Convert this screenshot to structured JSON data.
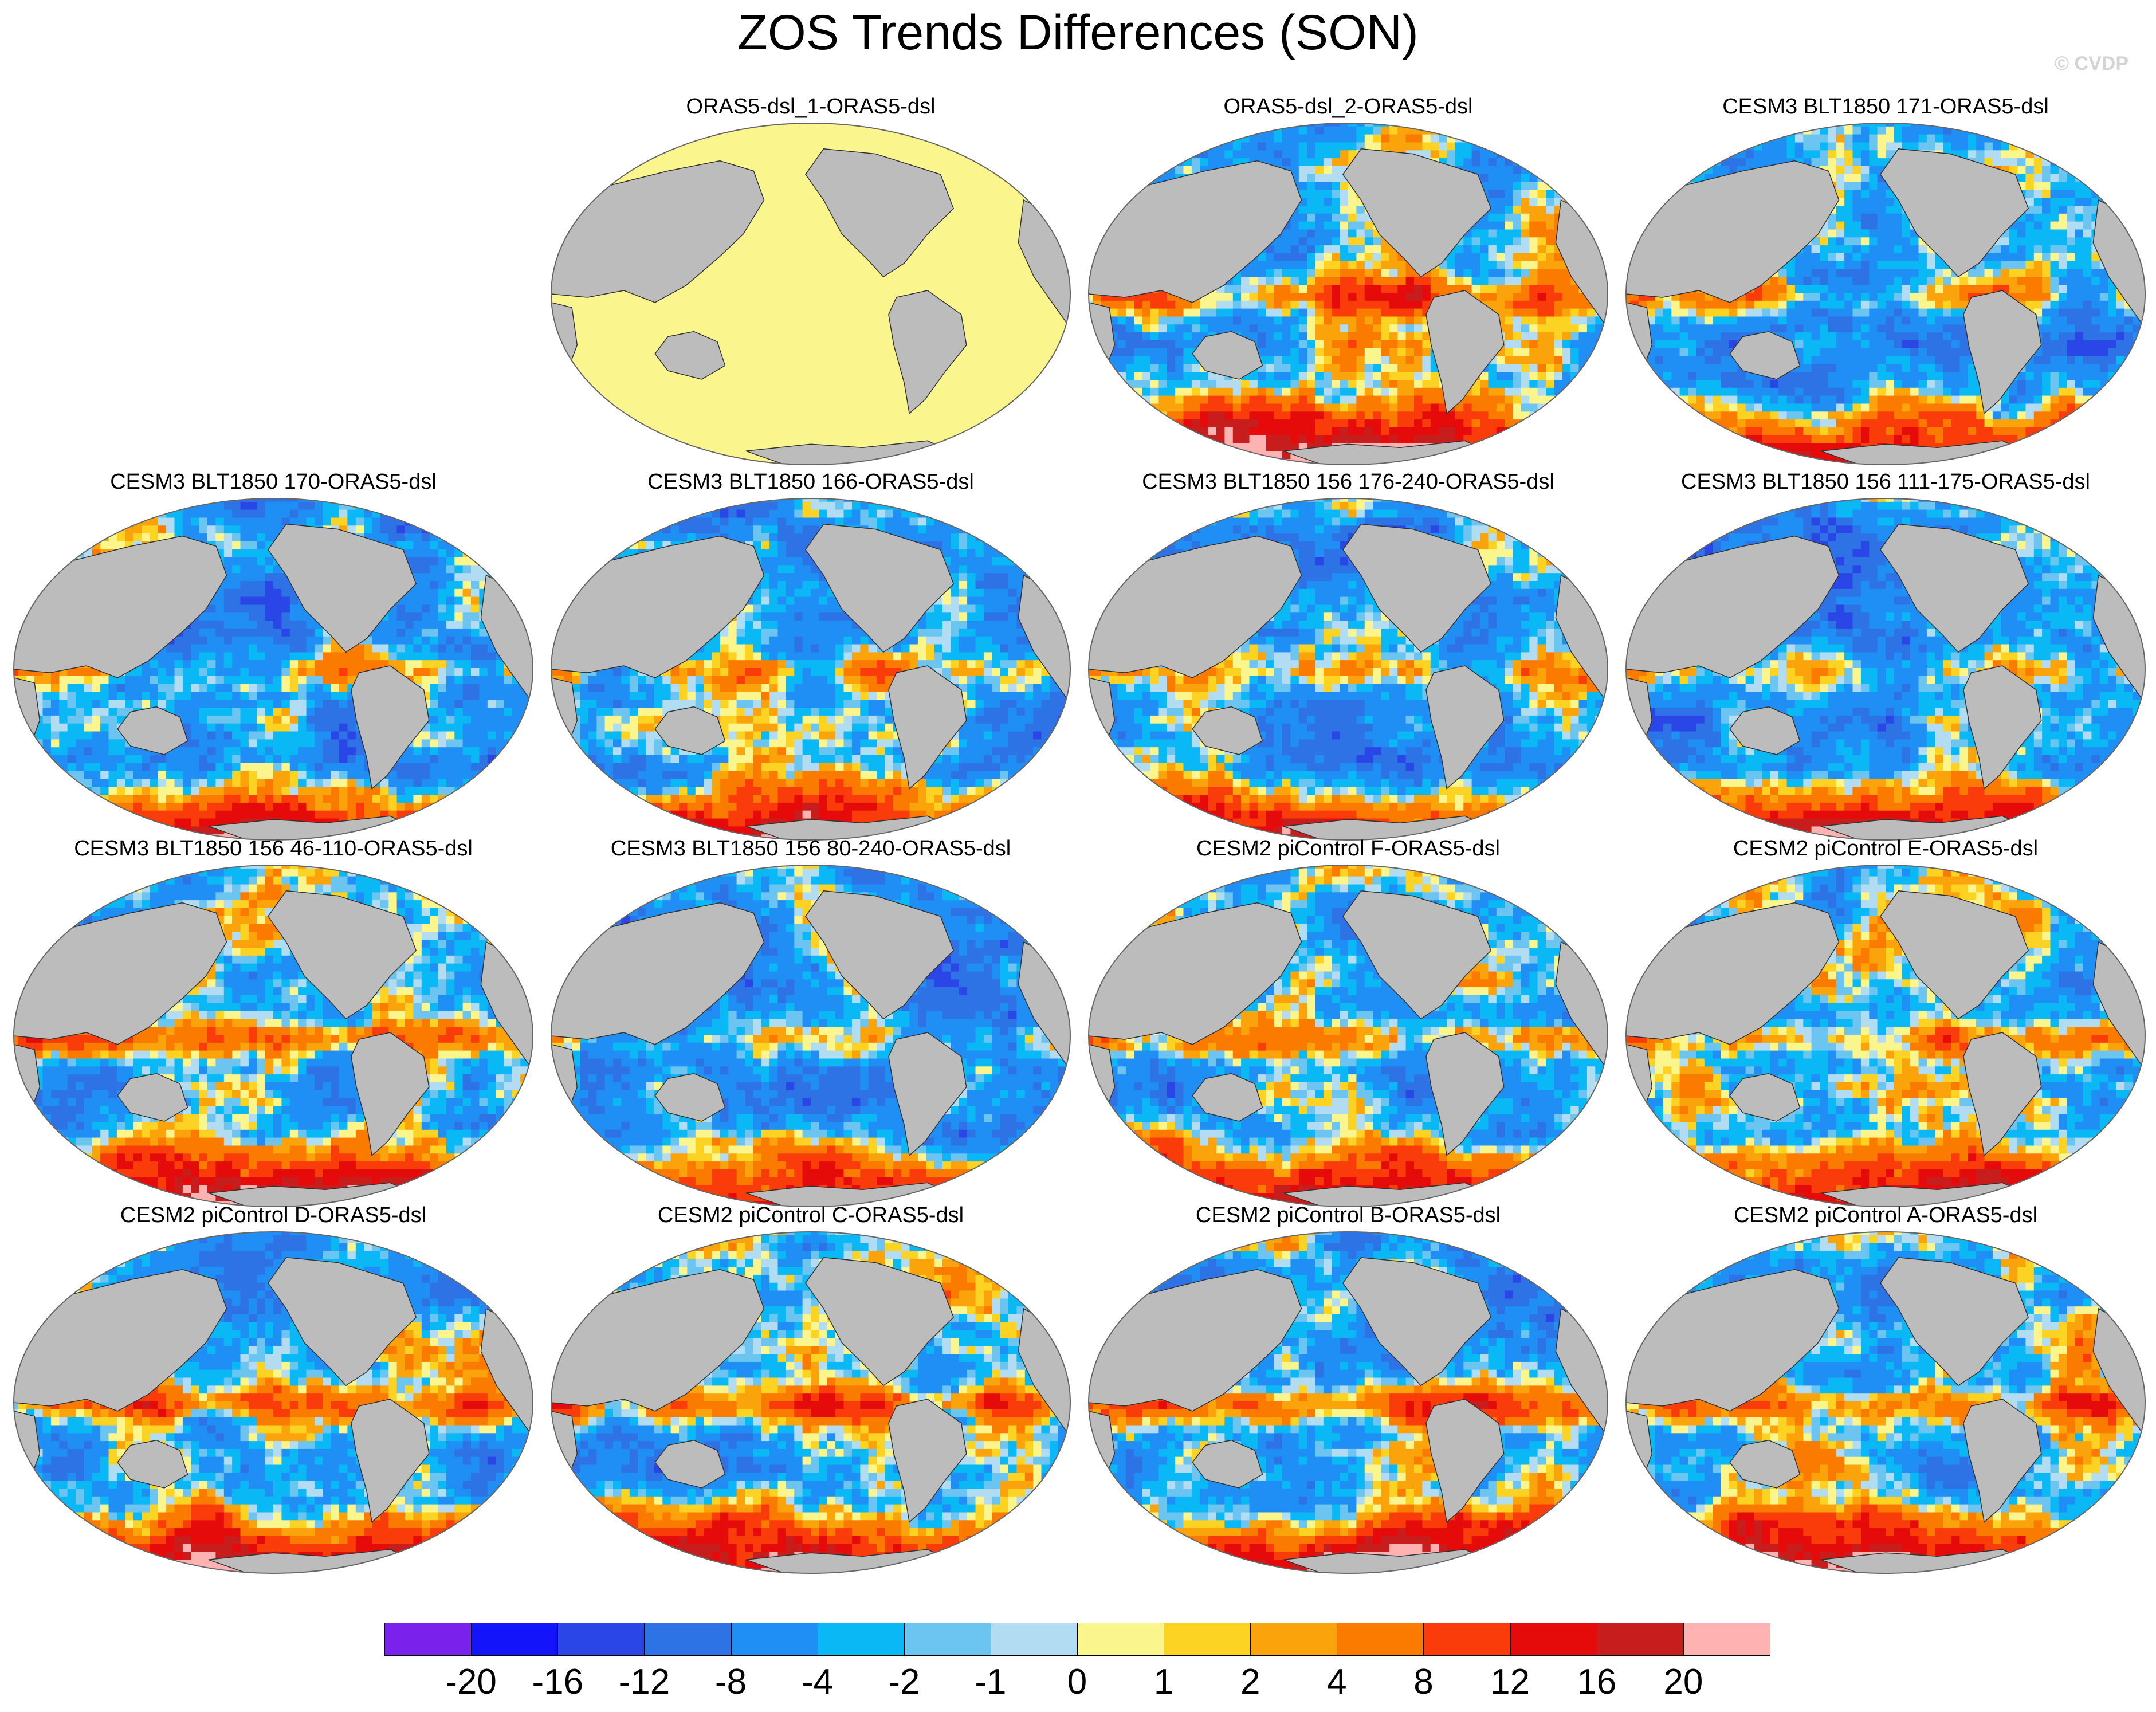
{
  "title": "ZOS Trends Differences (SON)",
  "copyright": "© CVDP",
  "colors": {
    "land": "#bcbcbc",
    "coast": "#333333"
  },
  "panels": [
    {
      "title": "ORAS5-dsl_1-ORAS5-dsl",
      "pattern": "uniform-zero"
    },
    {
      "title": "ORAS5-dsl_2-ORAS5-dsl",
      "pattern": "mixed"
    },
    {
      "title": "CESM3 BLT1850 171-ORAS5-dsl",
      "pattern": "mostly-negative"
    },
    {
      "title": "CESM3 BLT1850 170-ORAS5-dsl",
      "pattern": "mostly-negative"
    },
    {
      "title": "CESM3 BLT1850 166-ORAS5-dsl",
      "pattern": "mostly-negative"
    },
    {
      "title": "CESM3 BLT1850 156 176-240-ORAS5-dsl",
      "pattern": "mostly-negative"
    },
    {
      "title": "CESM3 BLT1850 156 111-175-ORAS5-dsl",
      "pattern": "mostly-negative"
    },
    {
      "title": "CESM3 BLT1850 156 46-110-ORAS5-dsl",
      "pattern": "mixed"
    },
    {
      "title": "CESM3 BLT1850 156 80-240-ORAS5-dsl",
      "pattern": "mostly-negative"
    },
    {
      "title": "CESM2 piControl F-ORAS5-dsl",
      "pattern": "mixed"
    },
    {
      "title": "CESM2 piControl E-ORAS5-dsl",
      "pattern": "mixed"
    },
    {
      "title": "CESM2 piControl D-ORAS5-dsl",
      "pattern": "mixed"
    },
    {
      "title": "CESM2 piControl C-ORAS5-dsl",
      "pattern": "mixed"
    },
    {
      "title": "CESM2 piControl B-ORAS5-dsl",
      "pattern": "mixed"
    },
    {
      "title": "CESM2 piControl A-ORAS5-dsl",
      "pattern": "mixed"
    }
  ],
  "colorbar": {
    "colors": [
      "#7a22ec",
      "#1414fa",
      "#2a46e6",
      "#2e73e6",
      "#1f8ff5",
      "#0ab8f5",
      "#6cc4f0",
      "#b2dcf2",
      "#fbf58e",
      "#fcd223",
      "#fba30a",
      "#fb7a00",
      "#f93c0a",
      "#e60b0b",
      "#c81d1d",
      "#feb2b2"
    ],
    "labels": [
      "-20",
      "-16",
      "-12",
      "-8",
      "-4",
      "-2",
      "-1",
      "0",
      "1",
      "2",
      "4",
      "8",
      "12",
      "16",
      "20"
    ]
  }
}
